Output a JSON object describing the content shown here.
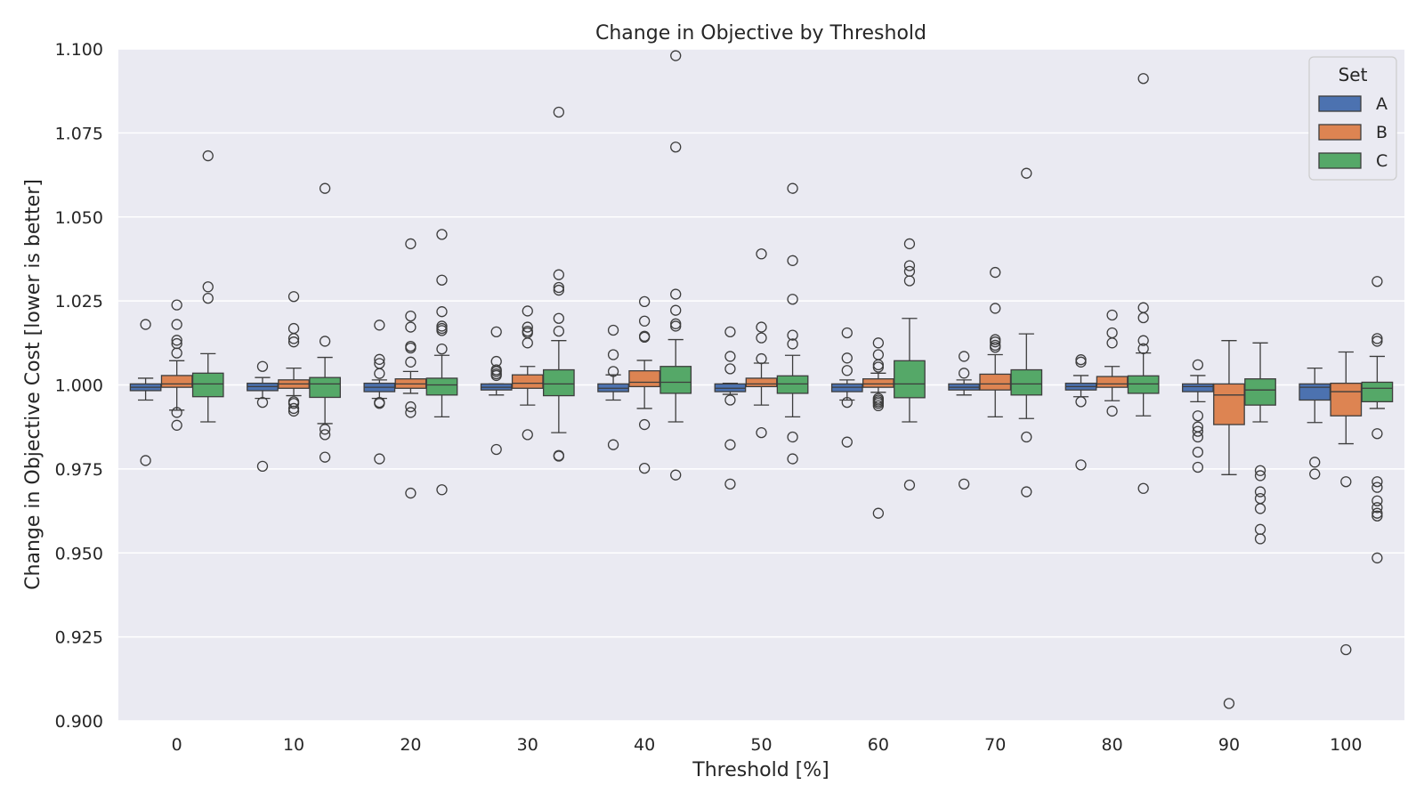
{
  "chart_data": {
    "type": "box",
    "title": "Change in Objective by Threshold",
    "xlabel": "Threshold [%]",
    "ylabel": "Change in Objective Cost [lower is better]",
    "categories": [
      "0",
      "10",
      "20",
      "30",
      "40",
      "50",
      "60",
      "70",
      "80",
      "90",
      "100"
    ],
    "ylim": [
      0.9,
      1.1
    ],
    "yticks": [
      "0.900",
      "0.925",
      "0.950",
      "0.975",
      "1.000",
      "1.025",
      "1.050",
      "1.075",
      "1.100"
    ],
    "grid": true,
    "legend": {
      "title": "Set",
      "position": "top-right"
    },
    "series": [
      {
        "name": "A",
        "color": "#4c72b0",
        "boxes": [
          {
            "whisker_low": 0.9955,
            "q1": 0.9983,
            "median": 0.9993,
            "q3": 1.0003,
            "whisker_high": 1.002,
            "outliers": [
              1.018,
              0.9775
            ]
          },
          {
            "whisker_low": 0.996,
            "q1": 0.9983,
            "median": 0.9995,
            "q3": 1.0005,
            "whisker_high": 1.0022,
            "outliers": [
              1.0055,
              0.9948,
              0.9758
            ]
          },
          {
            "whisker_low": 0.996,
            "q1": 0.998,
            "median": 0.9993,
            "q3": 1.0005,
            "whisker_high": 1.0015,
            "outliers": [
              1.0178,
              1.0076,
              1.0064,
              1.0034,
              0.9948,
              0.9945,
              0.978
            ]
          },
          {
            "whisker_low": 0.997,
            "q1": 0.9985,
            "median": 0.9993,
            "q3": 1.0003,
            "whisker_high": 1.0003,
            "outliers": [
              1.0158,
              1.007,
              1.0045,
              1.004,
              1.0033,
              1.0028,
              0.9808
            ]
          },
          {
            "whisker_low": 0.9955,
            "q1": 0.998,
            "median": 0.999,
            "q3": 1.0003,
            "whisker_high": 1.003,
            "outliers": [
              1.0163,
              1.009,
              1.004,
              0.9822
            ]
          },
          {
            "whisker_low": 0.9972,
            "q1": 0.998,
            "median": 0.999,
            "q3": 1.0003,
            "whisker_high": 1.0005,
            "outliers": [
              1.0158,
              1.0085,
              1.0048,
              0.9955,
              0.9822,
              0.9705
            ]
          },
          {
            "whisker_low": 0.9955,
            "q1": 0.998,
            "median": 0.9993,
            "q3": 1.0003,
            "whisker_high": 1.0015,
            "outliers": [
              1.0155,
              1.008,
              1.0043,
              0.9948,
              0.983
            ]
          },
          {
            "whisker_low": 0.997,
            "q1": 0.9985,
            "median": 0.9993,
            "q3": 1.0003,
            "whisker_high": 1.0015,
            "outliers": [
              1.0085,
              1.0035,
              0.9705
            ]
          },
          {
            "whisker_low": 0.9965,
            "q1": 0.9985,
            "median": 0.9995,
            "q3": 1.0005,
            "whisker_high": 1.0028,
            "outliers": [
              1.0075,
              1.0068,
              0.995,
              0.9762
            ]
          },
          {
            "whisker_low": 0.995,
            "q1": 0.998,
            "median": 0.9995,
            "q3": 1.0003,
            "whisker_high": 1.0028,
            "outliers": [
              1.006,
              0.9908,
              0.9875,
              0.9862,
              0.9845,
              0.98,
              0.9755
            ]
          },
          {
            "whisker_low": 0.9888,
            "q1": 0.9955,
            "median": 0.9993,
            "q3": 1.0003,
            "whisker_high": 1.005,
            "outliers": [
              0.977,
              0.9735
            ]
          }
        ]
      },
      {
        "name": "B",
        "color": "#dd8452",
        "boxes": [
          {
            "whisker_low": 0.9925,
            "q1": 0.9993,
            "median": 1.0003,
            "q3": 1.0028,
            "whisker_high": 1.0072,
            "outliers": [
              1.0238,
              1.018,
              1.0133,
              1.0123,
              1.0095,
              0.9918,
              0.988
            ]
          },
          {
            "whisker_low": 0.9968,
            "q1": 0.999,
            "median": 1.0003,
            "q3": 1.0015,
            "whisker_high": 1.005,
            "outliers": [
              1.0263,
              1.0168,
              1.0138,
              1.0128,
              0.995,
              0.9945,
              0.993,
              0.9922
            ]
          },
          {
            "whisker_low": 0.9975,
            "q1": 0.999,
            "median": 1.0003,
            "q3": 1.0018,
            "whisker_high": 1.004,
            "outliers": [
              1.042,
              1.0205,
              1.0172,
              1.0115,
              1.011,
              1.0068,
              0.9935,
              0.9918,
              0.9678
            ]
          },
          {
            "whisker_low": 0.994,
            "q1": 0.999,
            "median": 1.0005,
            "q3": 1.003,
            "whisker_high": 1.0055,
            "outliers": [
              1.022,
              1.0172,
              1.016,
              1.0155,
              1.0125,
              0.9852
            ]
          },
          {
            "whisker_low": 0.993,
            "q1": 0.9995,
            "median": 1.0008,
            "q3": 1.0042,
            "whisker_high": 1.0073,
            "outliers": [
              1.0248,
              1.019,
              1.0145,
              1.0142,
              0.9882,
              0.9752
            ]
          },
          {
            "whisker_low": 0.994,
            "q1": 0.9995,
            "median": 1.0003,
            "q3": 1.002,
            "whisker_high": 1.0065,
            "outliers": [
              1.039,
              1.0172,
              1.014,
              1.0078,
              0.9858
            ]
          },
          {
            "whisker_low": 0.9978,
            "q1": 0.9993,
            "median": 1.0003,
            "q3": 1.0018,
            "whisker_high": 1.0035,
            "outliers": [
              1.0125,
              1.009,
              1.006,
              1.0053,
              0.996,
              0.9955,
              0.995,
              0.9945,
              0.9938,
              0.9618
            ]
          },
          {
            "whisker_low": 0.9905,
            "q1": 0.9985,
            "median": 1.0003,
            "q3": 1.0032,
            "whisker_high": 1.009,
            "outliers": [
              1.0335,
              1.0228,
              1.0135,
              1.0128,
              1.0118,
              1.0112
            ]
          },
          {
            "whisker_low": 0.9953,
            "q1": 0.9993,
            "median": 1.0003,
            "q3": 1.0025,
            "whisker_high": 1.0055,
            "outliers": [
              1.0208,
              1.0155,
              1.0125,
              0.9922
            ]
          },
          {
            "whisker_low": 0.9733,
            "q1": 0.9882,
            "median": 0.997,
            "q3": 1.0003,
            "whisker_high": 1.0132,
            "outliers": [
              0.9052
            ]
          },
          {
            "whisker_low": 0.9825,
            "q1": 0.9908,
            "median": 0.998,
            "q3": 1.0005,
            "whisker_high": 1.0098,
            "outliers": [
              0.9712,
              0.9212
            ]
          }
        ]
      },
      {
        "name": "C",
        "color": "#55a868",
        "boxes": [
          {
            "whisker_low": 0.989,
            "q1": 0.9965,
            "median": 1.0003,
            "q3": 1.0035,
            "whisker_high": 1.0093,
            "outliers": [
              1.0682,
              1.0292,
              1.0258
            ]
          },
          {
            "whisker_low": 0.9885,
            "q1": 0.9963,
            "median": 1.0003,
            "q3": 1.0022,
            "whisker_high": 1.0082,
            "outliers": [
              1.0585,
              1.013,
              0.9868,
              0.9852,
              0.9785
            ]
          },
          {
            "whisker_low": 0.9905,
            "q1": 0.997,
            "median": 1.0,
            "q3": 1.002,
            "whisker_high": 1.0088,
            "outliers": [
              1.0448,
              1.0312,
              1.0218,
              1.0175,
              1.0168,
              1.0162,
              1.0107,
              0.9688
            ]
          },
          {
            "whisker_low": 0.9858,
            "q1": 0.9968,
            "median": 1.0003,
            "q3": 1.0045,
            "whisker_high": 1.0132,
            "outliers": [
              1.0812,
              1.0328,
              1.029,
              1.0282,
              1.0198,
              1.016,
              0.979,
              0.9788
            ]
          },
          {
            "whisker_low": 0.989,
            "q1": 0.9975,
            "median": 1.0008,
            "q3": 1.0055,
            "whisker_high": 1.0135,
            "outliers": [
              1.098,
              1.0708,
              1.027,
              1.0222,
              1.0182,
              1.0175,
              0.9732
            ]
          },
          {
            "whisker_low": 0.9905,
            "q1": 0.9975,
            "median": 1.0003,
            "q3": 1.0027,
            "whisker_high": 1.0088,
            "outliers": [
              1.0585,
              1.037,
              1.0255,
              1.0148,
              1.0122,
              0.9845,
              0.978
            ]
          },
          {
            "whisker_low": 0.989,
            "q1": 0.9962,
            "median": 1.0003,
            "q3": 1.0072,
            "whisker_high": 1.0198,
            "outliers": [
              1.042,
              1.0355,
              1.0338,
              1.031,
              0.9702
            ]
          },
          {
            "whisker_low": 0.99,
            "q1": 0.997,
            "median": 1.0003,
            "q3": 1.0045,
            "whisker_high": 1.0152,
            "outliers": [
              1.063,
              0.9845,
              0.9682
            ]
          },
          {
            "whisker_low": 0.9908,
            "q1": 0.9975,
            "median": 1.0003,
            "q3": 1.0027,
            "whisker_high": 1.0095,
            "outliers": [
              1.0912,
              1.023,
              1.02,
              1.0132,
              1.0108,
              0.9692
            ]
          },
          {
            "whisker_low": 0.989,
            "q1": 0.994,
            "median": 0.9985,
            "q3": 1.0018,
            "whisker_high": 1.0125,
            "outliers": [
              0.9745,
              0.973,
              0.9682,
              0.9662,
              0.9632,
              0.957,
              0.9542
            ]
          },
          {
            "whisker_low": 0.993,
            "q1": 0.995,
            "median": 0.999,
            "q3": 1.0008,
            "whisker_high": 1.0085,
            "outliers": [
              1.0308,
              1.0138,
              1.013,
              0.9855,
              0.9712,
              0.9695,
              0.9655,
              0.9635,
              0.9618,
              0.961,
              0.9485
            ]
          }
        ]
      }
    ]
  }
}
